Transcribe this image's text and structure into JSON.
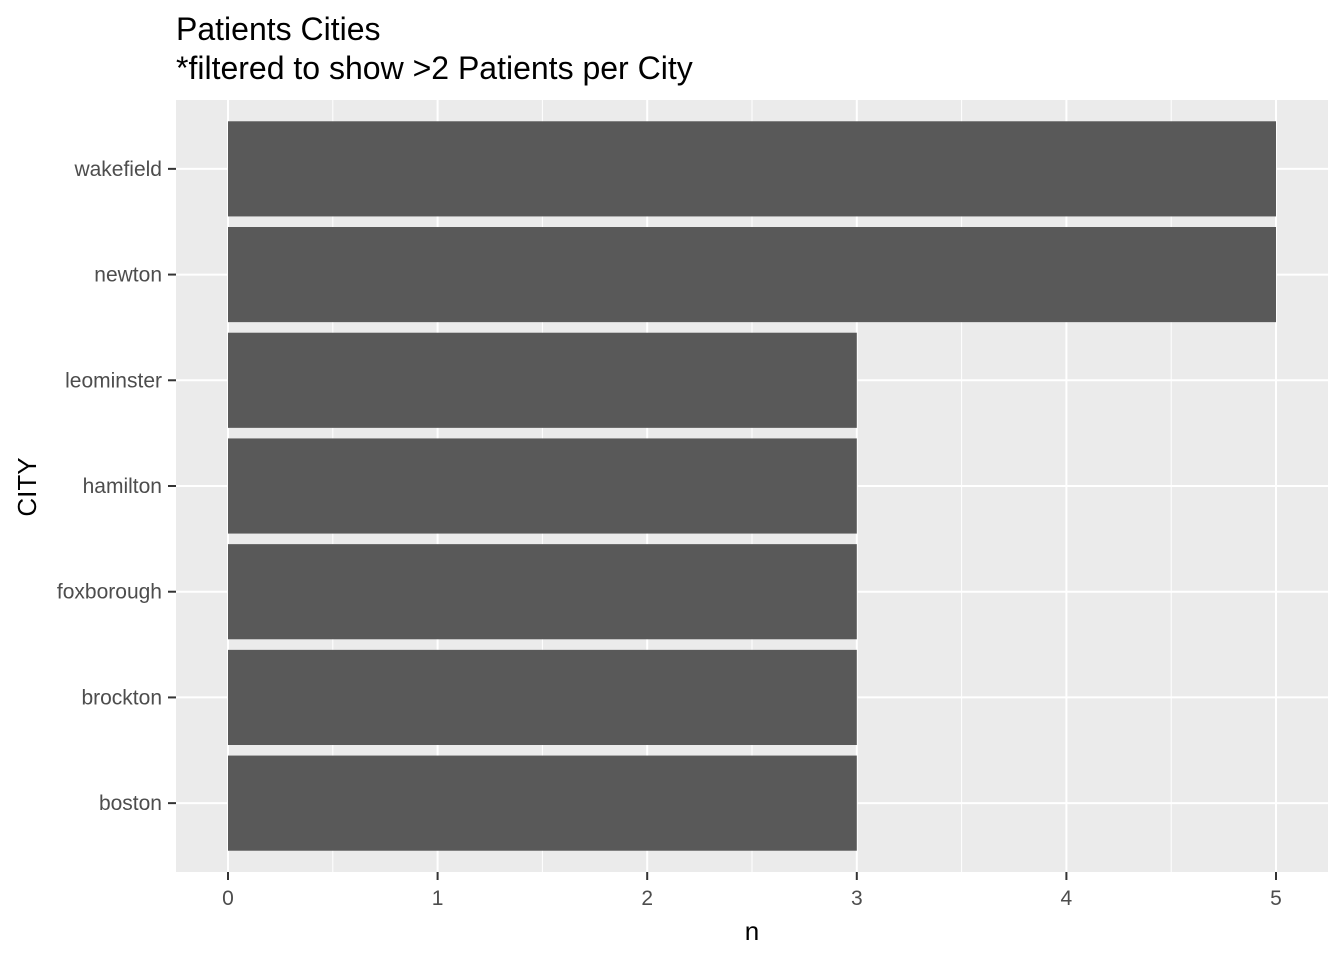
{
  "chart_data": {
    "type": "bar",
    "orientation": "horizontal",
    "title": "Patients Cities",
    "subtitle": "*filtered to show >2 Patients per City",
    "xlabel": "n",
    "ylabel": "CITY",
    "categories": [
      "wakefield",
      "newton",
      "leominster",
      "hamilton",
      "foxborough",
      "brockton",
      "boston"
    ],
    "values": [
      5,
      5,
      3,
      3,
      3,
      3,
      3
    ],
    "xlim": [
      0,
      5
    ],
    "xticks": [
      "0",
      "1",
      "2",
      "3",
      "4",
      "5"
    ],
    "grid": true,
    "colors": {
      "bar": "#595959",
      "panel": "#ebebeb",
      "grid": "#ffffff",
      "tick": "#333333"
    }
  }
}
